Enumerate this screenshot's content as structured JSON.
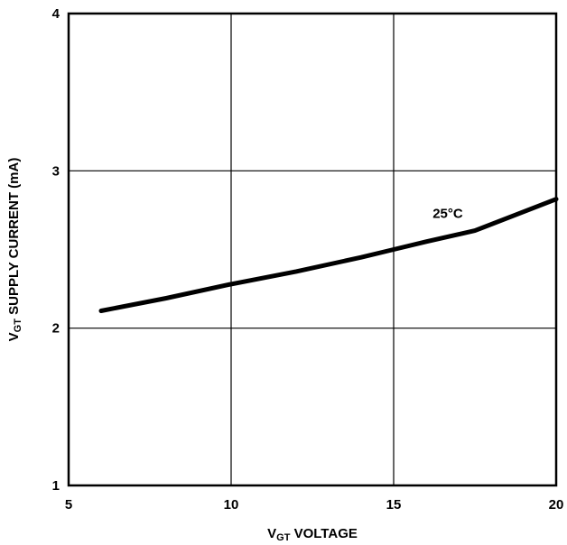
{
  "chart_data": {
    "type": "line",
    "xlabel": {
      "main": "V",
      "sub": "GT",
      "rest": " VOLTAGE"
    },
    "ylabel": {
      "main": "V",
      "sub": "GT",
      "rest": " SUPPLY CURRENT (mA)"
    },
    "xlim": [
      5,
      20
    ],
    "ylim": [
      1,
      4
    ],
    "xticks": [
      5,
      10,
      15,
      20
    ],
    "yticks": [
      1,
      2,
      3,
      4
    ],
    "grid": true,
    "series": [
      {
        "name": "25°C",
        "x": [
          6,
          8,
          10,
          12,
          14,
          15,
          16,
          17.5,
          20
        ],
        "y": [
          2.11,
          2.19,
          2.28,
          2.36,
          2.45,
          2.5,
          2.55,
          2.62,
          2.82
        ]
      }
    ],
    "annotations": [
      {
        "text": "25°C",
        "x": 16.2,
        "y": 2.7
      }
    ]
  }
}
